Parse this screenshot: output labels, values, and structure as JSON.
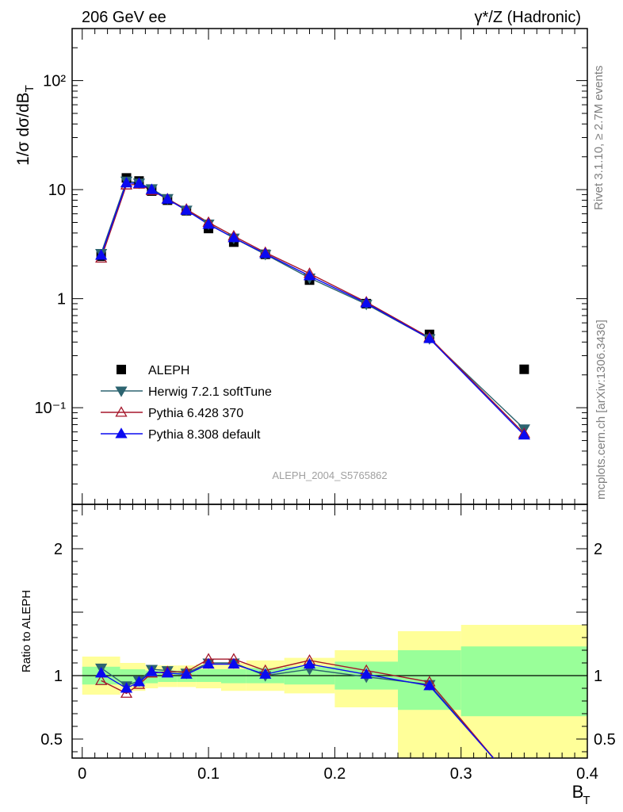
{
  "header": {
    "left_title": "206 GeV ee",
    "right_title": "γ*/Z (Hadronic)"
  },
  "side_labels": {
    "rivet": "Rivet 3.1.10, ≥ 2.7M events",
    "mcplots": "mcplots.cern.ch [arXiv:1306.3436]"
  },
  "analysis_tag": "ALEPH_2004_S5765862",
  "colors": {
    "data": "#000000",
    "herwig": "#2d6470",
    "pythia6": "#a5172b",
    "pythia8": "#0a0af0",
    "band_inner": "#99ff99",
    "band_outer": "#ffff99"
  },
  "chart_data": [
    {
      "type": "scatter",
      "role": "main",
      "ylabel": "1/σ  dσ/dB_T",
      "yscale": "log",
      "xlim": [
        -0.008,
        0.4
      ],
      "ylim": [
        0.013,
        300
      ],
      "y_ticks": [
        "10²",
        "10",
        "1",
        "10⁻¹"
      ],
      "x": [
        0.015,
        0.035,
        0.045,
        0.055,
        0.0675,
        0.0825,
        0.1,
        0.12,
        0.145,
        0.18,
        0.225,
        0.275,
        0.35
      ],
      "legend": [
        "ALEPH",
        "Herwig 7.2.1 softTune",
        "Pythia 6.428 370",
        "Pythia 8.308 default"
      ],
      "legend_placement": "lower-left",
      "series": [
        {
          "name": "ALEPH",
          "marker": "square",
          "values": [
            2.45,
            12.8,
            12.0,
            9.7,
            8.0,
            6.4,
            4.4,
            3.3,
            2.55,
            1.48,
            0.9,
            0.47,
            0.225
          ]
        },
        {
          "name": "Herwig 7.2.1 softTune",
          "marker": "triangle-down",
          "values": [
            2.6,
            12.0,
            11.5,
            10.2,
            8.3,
            6.5,
            4.85,
            3.6,
            2.55,
            1.55,
            0.89,
            0.43,
            0.064
          ]
        },
        {
          "name": "Pythia 6.428 370",
          "marker": "triangle-up-open",
          "values": [
            2.35,
            11.0,
            11.2,
            9.8,
            8.2,
            6.6,
            5.0,
            3.75,
            2.65,
            1.7,
            0.93,
            0.44,
            0.058
          ]
        },
        {
          "name": "Pythia 8.308 default",
          "marker": "triangle-up",
          "values": [
            2.5,
            11.5,
            11.4,
            10.0,
            8.15,
            6.45,
            4.8,
            3.62,
            2.58,
            1.62,
            0.91,
            0.43,
            0.056
          ]
        }
      ]
    },
    {
      "type": "line",
      "role": "ratio",
      "ylabel": "Ratio to ALEPH",
      "xlabel": "B_T",
      "ylim": [
        0.35,
        2.35
      ],
      "y_ticks": [
        0.5,
        1,
        2
      ],
      "x_ticks": [
        0,
        0.1,
        0.2,
        0.3,
        0.4
      ],
      "x": [
        0.015,
        0.035,
        0.045,
        0.055,
        0.0675,
        0.0825,
        0.1,
        0.12,
        0.145,
        0.18,
        0.225,
        0.275
      ],
      "series": [
        {
          "name": "Herwig 7.2.1 softTune",
          "values": [
            1.06,
            0.92,
            0.96,
            1.05,
            1.04,
            1.02,
            1.1,
            1.1,
            1.0,
            1.05,
            0.99,
            0.93
          ],
          "tail_to": [
            0.33,
            0.3
          ]
        },
        {
          "name": "Pythia 6.428 370",
          "values": [
            0.96,
            0.86,
            0.93,
            1.02,
            1.03,
            1.03,
            1.13,
            1.13,
            1.04,
            1.12,
            1.04,
            0.95
          ],
          "tail_to": [
            0.33,
            0.3
          ]
        },
        {
          "name": "Pythia 8.308 default",
          "values": [
            1.02,
            0.9,
            0.95,
            1.03,
            1.02,
            1.01,
            1.09,
            1.09,
            1.01,
            1.09,
            1.01,
            0.92
          ],
          "tail_to": [
            0.33,
            0.3
          ]
        }
      ],
      "bands": {
        "edges": [
          0.0,
          0.03,
          0.05,
          0.06,
          0.075,
          0.09,
          0.11,
          0.13,
          0.16,
          0.2,
          0.25,
          0.3,
          0.4
        ],
        "inner_lo": [
          0.93,
          0.93,
          0.94,
          0.95,
          0.95,
          0.95,
          0.94,
          0.94,
          0.93,
          0.89,
          0.73,
          0.68
        ],
        "inner_hi": [
          1.07,
          1.05,
          1.04,
          1.04,
          1.04,
          1.05,
          1.05,
          1.06,
          1.07,
          1.11,
          1.2,
          1.23
        ],
        "outer_lo": [
          0.85,
          0.88,
          0.9,
          0.91,
          0.91,
          0.9,
          0.88,
          0.88,
          0.86,
          0.75,
          0.35,
          0.35
        ],
        "outer_hi": [
          1.15,
          1.1,
          1.08,
          1.08,
          1.08,
          1.09,
          1.1,
          1.12,
          1.14,
          1.2,
          1.35,
          1.4
        ]
      }
    }
  ]
}
